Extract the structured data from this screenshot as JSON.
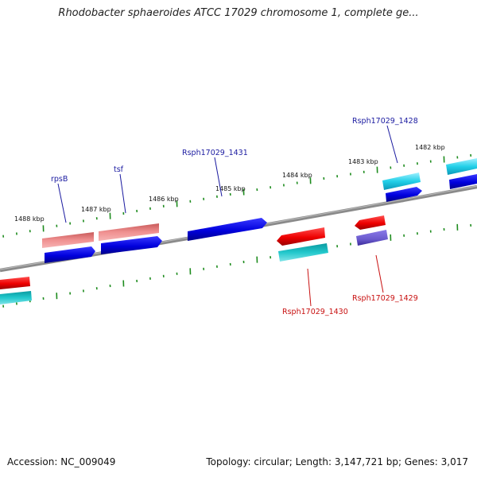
{
  "title": "Rhodobacter sphaeroides ATCC 17029 chromosome 1, complete ge...",
  "footer": {
    "accession": "Accession: NC_009049",
    "summary": "Topology: circular; Length: 3,147,721 bp; Genes: 3,017"
  },
  "scale_labels": [
    "1488 kbp",
    "1487 kbp",
    "1486 kbp",
    "1485 kbp",
    "1484 kbp",
    "1483 kbp",
    "1482 kbp"
  ],
  "gene_labels_forward": [
    "rpsB",
    "tsf",
    "Rsph17029_1431",
    "Rsph17029_1428"
  ],
  "gene_labels_reverse": [
    "Rsph17029_1430",
    "Rsph17029_1429"
  ],
  "colors": {
    "forward_cds": "#0000dd",
    "reverse_cds": "#ee0000",
    "rna_pink": "#e87878",
    "teal": "#1ab8c0",
    "cyan": "#22d0e8",
    "purple": "#6a5acd",
    "backbone": "#808080",
    "tick_green": "#1e8c1e",
    "label_blue": "#1a1aa0",
    "label_red": "#c81010"
  }
}
